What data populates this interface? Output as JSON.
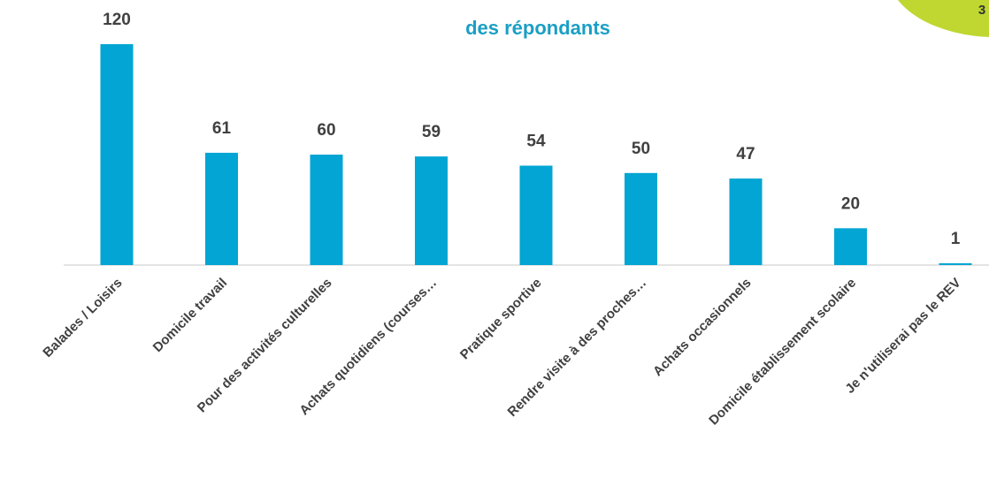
{
  "page_number": "3",
  "chart_data": {
    "type": "bar",
    "title": "des répondants",
    "categories": [
      "Balades / Loisirs",
      "Domicile travail",
      "Pour des activités culturelles",
      "Achats quotidiens (courses…",
      "Pratique sportive",
      "Rendre visite à des proches…",
      "Achats occasionnels",
      "Domicile établissement scolaire",
      "Je n'utiliserai pas le REV"
    ],
    "values": [
      120,
      61,
      60,
      59,
      54,
      50,
      47,
      20,
      1
    ],
    "color": "#02a5d3"
  }
}
